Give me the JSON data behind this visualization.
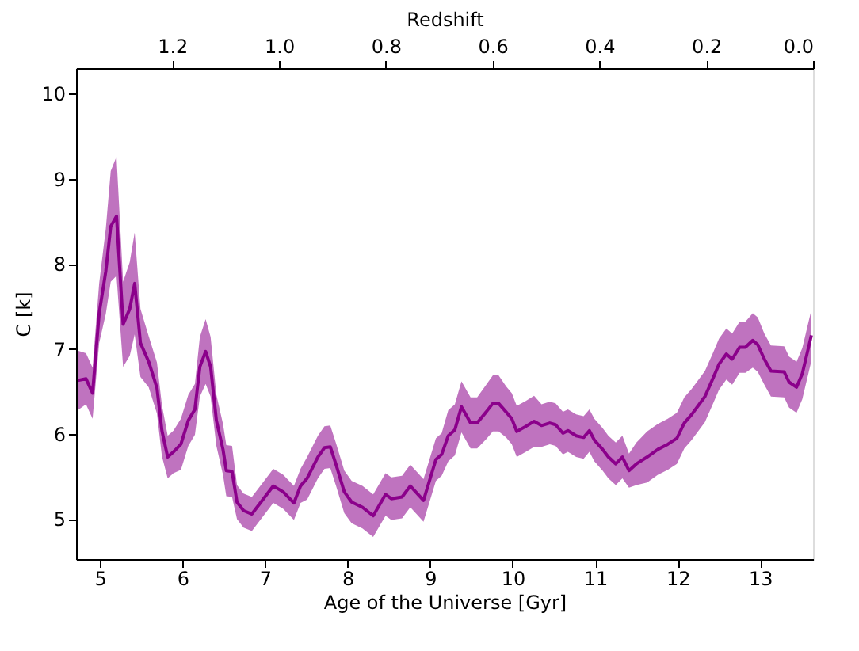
{
  "chart_data": {
    "type": "line",
    "xlabel": "Age of the Universe [Gyr]",
    "ylabel": "C [k]",
    "x2label": "Redshift",
    "xlim": [
      4.71,
      13.64
    ],
    "ylim": [
      4.53,
      10.3
    ],
    "x2lim": [
      1.38,
      0.0
    ],
    "xticks": [
      5,
      6,
      7,
      8,
      9,
      10,
      11,
      12,
      13
    ],
    "yticks": [
      5,
      6,
      7,
      8,
      9,
      10
    ],
    "x2ticks": [
      1.2,
      {
        "value": 1.0,
        "label": "1.0"
      },
      0.8,
      0.6,
      0.4,
      0.2,
      {
        "value": 0.0,
        "label": "0.0"
      }
    ],
    "grid": false,
    "series": [
      {
        "color": "#8b008b",
        "x": [
          4.73,
          4.83,
          4.91,
          4.99,
          5.07,
          5.13,
          5.2,
          5.28,
          5.36,
          5.42,
          5.49,
          5.59,
          5.69,
          5.75,
          5.82,
          5.89,
          5.98,
          6.07,
          6.15,
          6.21,
          6.28,
          6.34,
          6.41,
          6.49,
          6.53,
          6.6,
          6.66,
          6.74,
          6.84,
          6.95,
          7.1,
          7.22,
          7.35,
          7.43,
          7.51,
          7.64,
          7.72,
          7.79,
          7.86,
          7.96,
          8.05,
          8.18,
          8.31,
          8.37,
          8.46,
          8.53,
          8.66,
          8.76,
          8.92,
          9.07,
          9.14,
          9.22,
          9.3,
          9.38,
          9.49,
          9.57,
          9.68,
          9.76,
          9.83,
          9.92,
          9.99,
          10.05,
          10.16,
          10.26,
          10.35,
          10.45,
          10.52,
          10.61,
          10.67,
          10.77,
          10.86,
          10.93,
          10.99,
          11.09,
          11.16,
          11.25,
          11.33,
          11.41,
          11.5,
          11.63,
          11.76,
          11.88,
          11.99,
          12.08,
          12.17,
          12.33,
          12.43,
          12.5,
          12.59,
          12.66,
          12.75,
          12.82,
          12.91,
          12.97,
          13.05,
          13.13,
          13.29,
          13.35,
          13.44,
          13.51,
          13.62
        ],
        "values": [
          6.63,
          6.65,
          6.48,
          7.42,
          7.91,
          8.44,
          8.56,
          7.29,
          7.47,
          7.77,
          7.07,
          6.85,
          6.54,
          6.04,
          5.73,
          5.79,
          5.88,
          6.16,
          6.29,
          6.79,
          6.97,
          6.79,
          6.16,
          5.82,
          5.57,
          5.56,
          5.2,
          5.1,
          5.06,
          5.2,
          5.39,
          5.32,
          5.19,
          5.39,
          5.48,
          5.73,
          5.84,
          5.85,
          5.64,
          5.32,
          5.2,
          5.14,
          5.04,
          5.14,
          5.29,
          5.24,
          5.26,
          5.39,
          5.22,
          5.7,
          5.76,
          5.98,
          6.05,
          6.32,
          6.13,
          6.13,
          6.26,
          6.36,
          6.36,
          6.26,
          6.18,
          6.03,
          6.09,
          6.15,
          6.1,
          6.13,
          6.11,
          6.01,
          6.04,
          5.98,
          5.96,
          6.04,
          5.93,
          5.82,
          5.73,
          5.65,
          5.73,
          5.57,
          5.65,
          5.73,
          5.82,
          5.88,
          5.95,
          6.13,
          6.23,
          6.44,
          6.66,
          6.82,
          6.94,
          6.88,
          7.02,
          7.02,
          7.1,
          7.05,
          6.88,
          6.74,
          6.73,
          6.61,
          6.55,
          6.71,
          7.16
        ],
        "lower": [
          6.28,
          6.35,
          6.18,
          7.07,
          7.41,
          7.79,
          7.86,
          6.79,
          6.92,
          7.17,
          6.67,
          6.55,
          6.24,
          5.74,
          5.48,
          5.54,
          5.58,
          5.86,
          5.99,
          6.44,
          6.59,
          6.44,
          5.86,
          5.52,
          5.27,
          5.26,
          5.0,
          4.9,
          4.86,
          5.0,
          5.19,
          5.12,
          4.99,
          5.19,
          5.23,
          5.48,
          5.59,
          5.6,
          5.39,
          5.07,
          4.95,
          4.89,
          4.79,
          4.89,
          5.04,
          4.99,
          5.01,
          5.14,
          4.97,
          5.45,
          5.51,
          5.68,
          5.75,
          6.02,
          5.83,
          5.83,
          5.94,
          6.03,
          6.03,
          5.96,
          5.88,
          5.73,
          5.79,
          5.85,
          5.85,
          5.88,
          5.86,
          5.76,
          5.79,
          5.73,
          5.71,
          5.79,
          5.68,
          5.57,
          5.48,
          5.4,
          5.48,
          5.37,
          5.4,
          5.43,
          5.52,
          5.58,
          5.65,
          5.83,
          5.93,
          6.14,
          6.36,
          6.52,
          6.64,
          6.58,
          6.72,
          6.72,
          6.78,
          6.73,
          6.58,
          6.44,
          6.43,
          6.31,
          6.25,
          6.41,
          6.86
        ],
        "upper": [
          6.98,
          6.95,
          6.78,
          7.77,
          8.41,
          9.09,
          9.26,
          7.79,
          8.02,
          8.37,
          7.47,
          7.15,
          6.84,
          6.34,
          5.98,
          6.04,
          6.18,
          6.46,
          6.59,
          7.14,
          7.35,
          7.14,
          6.46,
          6.12,
          5.87,
          5.86,
          5.4,
          5.3,
          5.26,
          5.4,
          5.59,
          5.52,
          5.39,
          5.59,
          5.73,
          5.98,
          6.09,
          6.1,
          5.89,
          5.57,
          5.45,
          5.39,
          5.29,
          5.39,
          5.54,
          5.49,
          5.51,
          5.64,
          5.47,
          5.95,
          6.01,
          6.28,
          6.35,
          6.62,
          6.43,
          6.43,
          6.58,
          6.69,
          6.69,
          6.56,
          6.48,
          6.33,
          6.39,
          6.45,
          6.35,
          6.38,
          6.36,
          6.26,
          6.29,
          6.23,
          6.21,
          6.29,
          6.18,
          6.07,
          5.98,
          5.9,
          5.98,
          5.77,
          5.9,
          6.03,
          6.12,
          6.18,
          6.25,
          6.43,
          6.53,
          6.74,
          6.96,
          7.12,
          7.24,
          7.18,
          7.32,
          7.32,
          7.42,
          7.37,
          7.18,
          7.04,
          7.03,
          6.91,
          6.85,
          7.01,
          7.46
        ]
      }
    ]
  }
}
